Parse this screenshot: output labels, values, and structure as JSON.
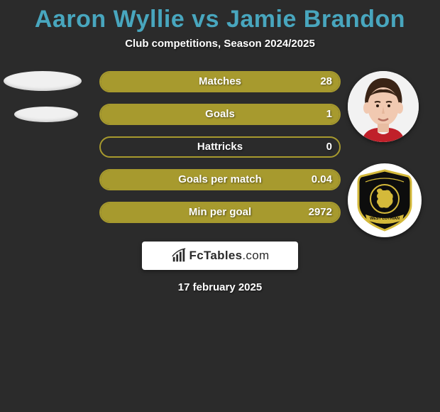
{
  "title": "Aaron Wyllie vs Jamie Brandon",
  "title_color": "#48a6be",
  "subtitle": "Club competitions, Season 2024/2025",
  "background_color": "#2b2b2b",
  "accent_color": "#a79a2e",
  "bars": [
    {
      "label": "Matches",
      "left_value": "",
      "left_pct": 0,
      "right_value": "28",
      "right_pct": 100
    },
    {
      "label": "Goals",
      "left_value": "",
      "left_pct": 0,
      "right_value": "1",
      "right_pct": 100
    },
    {
      "label": "Hattricks",
      "left_value": "",
      "left_pct": 0,
      "right_value": "0",
      "right_pct": 0
    },
    {
      "label": "Goals per match",
      "left_value": "",
      "left_pct": 0,
      "right_value": "0.04",
      "right_pct": 100
    },
    {
      "label": "Min per goal",
      "left_value": "",
      "left_pct": 0,
      "right_value": "2972",
      "right_pct": 100
    }
  ],
  "logo": {
    "brand": "FcTables",
    "suffix": ".com"
  },
  "date": "17 february 2025",
  "badge": {
    "shield_fill": "#0d0d0d",
    "shield_border": "#d4b93a",
    "top_text": "",
    "bottom_text": "WEST LOTHIAN",
    "bottom_text_color": "#d4b93a"
  }
}
